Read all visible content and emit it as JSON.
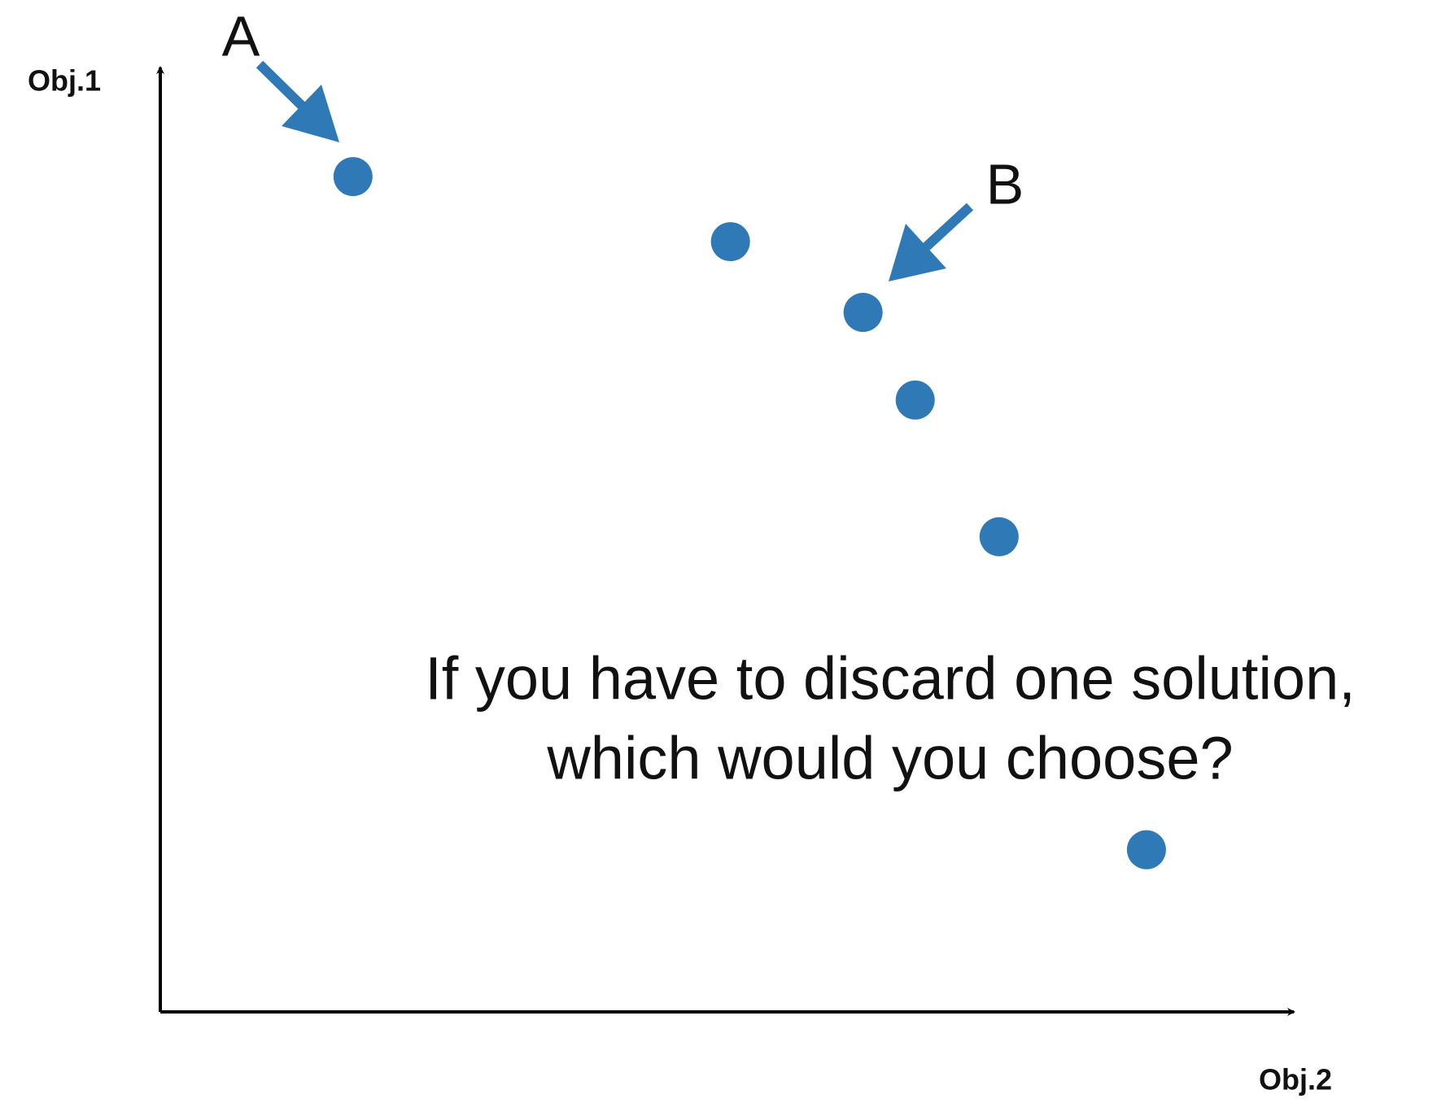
{
  "chart_data": {
    "type": "scatter",
    "x_label": "Obj.2",
    "y_label": "Obj.1",
    "series": [
      {
        "color": "#2f7ab6",
        "x": [
          17.0,
          50.3,
          62.0,
          66.6,
          74.0,
          87.0
        ],
        "values": [
          88.6,
          81.7,
          74.2,
          64.9,
          50.4,
          17.2
        ]
      }
    ],
    "xlim": [
      0,
      100
    ],
    "ylim": [
      0,
      100
    ],
    "annotations": [
      "A",
      "B",
      "If you have to discard one solution,",
      "which would you choose?"
    ]
  }
}
